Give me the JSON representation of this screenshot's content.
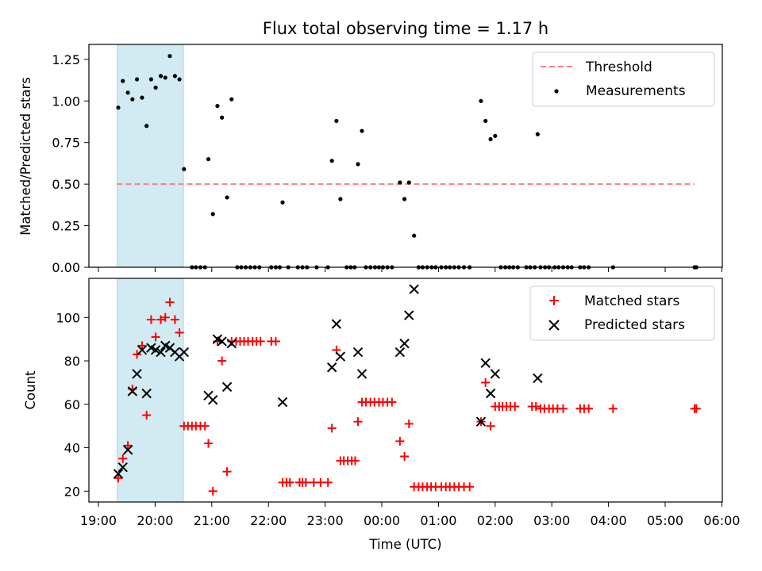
{
  "title": "Flux total observing time = 1.17 h",
  "colors": {
    "threshold": "#ff7f7f",
    "measurement": "#000000",
    "matched": "#ff0000",
    "predicted": "#000000",
    "shade": "#add8e6"
  },
  "x_ticks": [
    "19:00",
    "20:00",
    "21:00",
    "22:00",
    "23:00",
    "00:00",
    "01:00",
    "02:00",
    "03:00",
    "04:00",
    "05:00",
    "06:00"
  ],
  "xlabel": "Time (UTC)",
  "chart_data": [
    {
      "type": "scatter",
      "x_unit": "hours after 19:00 UTC",
      "ylabel": "Matched/Predicted stars",
      "ylim": [
        0,
        1.34
      ],
      "y_ticks": [
        "0.00",
        "0.25",
        "0.50",
        "0.75",
        "1.00",
        "1.25"
      ],
      "shaded_interval": [
        0.33,
        1.5
      ],
      "legend": {
        "position": "top-right",
        "entries": [
          "Threshold",
          "Measurements"
        ]
      },
      "series": [
        {
          "name": "Threshold",
          "style": "dashed-line",
          "x": [
            0.33,
            10.52
          ],
          "y": [
            0.5,
            0.5
          ]
        },
        {
          "name": "Measurements",
          "style": "dot",
          "points": [
            [
              0.35,
              0.96
            ],
            [
              0.43,
              1.12
            ],
            [
              0.52,
              1.05
            ],
            [
              0.6,
              1.01
            ],
            [
              0.68,
              1.13
            ],
            [
              0.77,
              1.02
            ],
            [
              0.85,
              0.85
            ],
            [
              0.93,
              1.13
            ],
            [
              1.01,
              1.08
            ],
            [
              1.1,
              1.15
            ],
            [
              1.18,
              1.14
            ],
            [
              1.26,
              1.27
            ],
            [
              1.35,
              1.15
            ],
            [
              1.43,
              1.13
            ],
            [
              1.51,
              0.59
            ],
            [
              1.65,
              0
            ],
            [
              1.72,
              0
            ],
            [
              1.8,
              0
            ],
            [
              1.88,
              0
            ],
            [
              1.94,
              0.65
            ],
            [
              2.02,
              0.32
            ],
            [
              2.1,
              0.97
            ],
            [
              2.18,
              0.9
            ],
            [
              2.27,
              0.42
            ],
            [
              2.35,
              1.01
            ],
            [
              2.45,
              0
            ],
            [
              2.52,
              0
            ],
            [
              2.6,
              0
            ],
            [
              2.68,
              0
            ],
            [
              2.76,
              0
            ],
            [
              2.84,
              0
            ],
            [
              3.05,
              0
            ],
            [
              3.13,
              0
            ],
            [
              3.2,
              0
            ],
            [
              3.25,
              0.39
            ],
            [
              3.35,
              0
            ],
            [
              3.52,
              0
            ],
            [
              3.6,
              0
            ],
            [
              3.68,
              0
            ],
            [
              3.85,
              0
            ],
            [
              4.05,
              0
            ],
            [
              4.12,
              0.64
            ],
            [
              4.2,
              0.88
            ],
            [
              4.27,
              0.41
            ],
            [
              4.38,
              0
            ],
            [
              4.45,
              0
            ],
            [
              4.52,
              0
            ],
            [
              4.58,
              0.62
            ],
            [
              4.65,
              0.82
            ],
            [
              4.72,
              0
            ],
            [
              4.8,
              0
            ],
            [
              4.88,
              0
            ],
            [
              4.95,
              0
            ],
            [
              5.02,
              0
            ],
            [
              5.1,
              0
            ],
            [
              5.18,
              0
            ],
            [
              5.32,
              0.51
            ],
            [
              5.4,
              0.41
            ],
            [
              5.48,
              0.51
            ],
            [
              5.57,
              0.19
            ],
            [
              5.65,
              0
            ],
            [
              5.72,
              0
            ],
            [
              5.8,
              0
            ],
            [
              5.88,
              0
            ],
            [
              5.95,
              0
            ],
            [
              6.05,
              0
            ],
            [
              6.13,
              0
            ],
            [
              6.2,
              0
            ],
            [
              6.28,
              0
            ],
            [
              6.36,
              0
            ],
            [
              6.45,
              0
            ],
            [
              6.55,
              0
            ],
            [
              6.75,
              1.0
            ],
            [
              6.83,
              0.88
            ],
            [
              6.92,
              0.77
            ],
            [
              7.0,
              0.79
            ],
            [
              7.1,
              0
            ],
            [
              7.18,
              0
            ],
            [
              7.25,
              0
            ],
            [
              7.32,
              0
            ],
            [
              7.4,
              0
            ],
            [
              7.55,
              0
            ],
            [
              7.62,
              0
            ],
            [
              7.7,
              0
            ],
            [
              7.75,
              0.8
            ],
            [
              7.8,
              0
            ],
            [
              7.88,
              0
            ],
            [
              7.95,
              0
            ],
            [
              8.05,
              0
            ],
            [
              8.12,
              0
            ],
            [
              8.2,
              0
            ],
            [
              8.28,
              0
            ],
            [
              8.35,
              0
            ],
            [
              8.5,
              0
            ],
            [
              8.57,
              0
            ],
            [
              8.65,
              0
            ],
            [
              9.08,
              0
            ],
            [
              10.52,
              0
            ],
            [
              10.55,
              0
            ]
          ]
        }
      ]
    },
    {
      "type": "scatter",
      "x_unit": "hours after 19:00 UTC",
      "ylabel": "Count",
      "ylim": [
        15,
        118
      ],
      "y_ticks": [
        "20",
        "40",
        "60",
        "80",
        "100"
      ],
      "shaded_interval": [
        0.33,
        1.5
      ],
      "legend": {
        "position": "top-right",
        "entries": [
          "Matched stars",
          "Predicted stars"
        ]
      },
      "series": [
        {
          "name": "Matched stars",
          "marker": "plus",
          "points": [
            [
              0.35,
              26
            ],
            [
              0.43,
              35
            ],
            [
              0.52,
              41
            ],
            [
              0.6,
              67
            ],
            [
              0.68,
              83
            ],
            [
              0.77,
              87
            ],
            [
              0.85,
              55
            ],
            [
              0.93,
              99
            ],
            [
              1.01,
              91
            ],
            [
              1.1,
              99
            ],
            [
              1.18,
              100
            ],
            [
              1.26,
              107
            ],
            [
              1.35,
              99
            ],
            [
              1.43,
              93
            ],
            [
              1.51,
              50
            ],
            [
              1.58,
              50
            ],
            [
              1.65,
              50
            ],
            [
              1.72,
              50
            ],
            [
              1.8,
              50
            ],
            [
              1.88,
              50
            ],
            [
              1.94,
              42
            ],
            [
              2.02,
              20
            ],
            [
              2.1,
              89
            ],
            [
              2.18,
              80
            ],
            [
              2.27,
              29
            ],
            [
              2.35,
              89
            ],
            [
              2.43,
              89
            ],
            [
              2.5,
              89
            ],
            [
              2.57,
              89
            ],
            [
              2.64,
              89
            ],
            [
              2.72,
              89
            ],
            [
              2.79,
              89
            ],
            [
              2.86,
              89
            ],
            [
              3.05,
              89
            ],
            [
              3.13,
              89
            ],
            [
              3.25,
              24
            ],
            [
              3.32,
              24
            ],
            [
              3.38,
              24
            ],
            [
              3.55,
              24
            ],
            [
              3.6,
              24
            ],
            [
              3.66,
              24
            ],
            [
              3.8,
              24
            ],
            [
              3.92,
              24
            ],
            [
              4.05,
              24
            ],
            [
              4.12,
              49
            ],
            [
              4.2,
              85
            ],
            [
              4.27,
              34
            ],
            [
              4.33,
              34
            ],
            [
              4.4,
              34
            ],
            [
              4.47,
              34
            ],
            [
              4.53,
              34
            ],
            [
              4.58,
              52
            ],
            [
              4.65,
              61
            ],
            [
              4.72,
              61
            ],
            [
              4.8,
              61
            ],
            [
              4.87,
              61
            ],
            [
              4.95,
              61
            ],
            [
              5.02,
              61
            ],
            [
              5.1,
              61
            ],
            [
              5.18,
              61
            ],
            [
              5.32,
              43
            ],
            [
              5.4,
              36
            ],
            [
              5.48,
              51
            ],
            [
              5.57,
              22
            ],
            [
              5.65,
              22
            ],
            [
              5.72,
              22
            ],
            [
              5.8,
              22
            ],
            [
              5.87,
              22
            ],
            [
              5.95,
              22
            ],
            [
              6.05,
              22
            ],
            [
              6.13,
              22
            ],
            [
              6.2,
              22
            ],
            [
              6.28,
              22
            ],
            [
              6.36,
              22
            ],
            [
              6.45,
              22
            ],
            [
              6.55,
              22
            ],
            [
              6.75,
              52
            ],
            [
              6.83,
              70
            ],
            [
              6.92,
              50
            ],
            [
              7.0,
              59
            ],
            [
              7.07,
              59
            ],
            [
              7.13,
              59
            ],
            [
              7.2,
              59
            ],
            [
              7.27,
              59
            ],
            [
              7.35,
              59
            ],
            [
              7.65,
              59
            ],
            [
              7.72,
              59
            ],
            [
              7.8,
              58
            ],
            [
              7.87,
              58
            ],
            [
              7.95,
              58
            ],
            [
              8.02,
              58
            ],
            [
              8.1,
              58
            ],
            [
              8.2,
              58
            ],
            [
              8.5,
              58
            ],
            [
              8.57,
              58
            ],
            [
              8.65,
              58
            ],
            [
              9.08,
              58
            ],
            [
              10.52,
              58
            ],
            [
              10.55,
              58
            ]
          ]
        },
        {
          "name": "Predicted stars",
          "marker": "x",
          "points": [
            [
              0.35,
              28
            ],
            [
              0.43,
              31
            ],
            [
              0.52,
              39
            ],
            [
              0.6,
              66
            ],
            [
              0.68,
              74
            ],
            [
              0.77,
              85
            ],
            [
              0.85,
              65
            ],
            [
              0.93,
              86
            ],
            [
              1.01,
              85
            ],
            [
              1.1,
              84
            ],
            [
              1.18,
              87
            ],
            [
              1.26,
              86
            ],
            [
              1.35,
              84
            ],
            [
              1.43,
              82
            ],
            [
              1.51,
              84
            ],
            [
              1.94,
              64
            ],
            [
              2.02,
              62
            ],
            [
              2.1,
              90
            ],
            [
              2.18,
              89
            ],
            [
              2.27,
              68
            ],
            [
              2.35,
              88
            ],
            [
              3.25,
              61
            ],
            [
              4.12,
              77
            ],
            [
              4.2,
              97
            ],
            [
              4.27,
              82
            ],
            [
              4.58,
              84
            ],
            [
              4.65,
              74
            ],
            [
              5.32,
              84
            ],
            [
              5.4,
              88
            ],
            [
              5.48,
              101
            ],
            [
              5.57,
              113
            ],
            [
              6.75,
              52
            ],
            [
              6.83,
              79
            ],
            [
              6.92,
              65
            ],
            [
              7.0,
              74
            ],
            [
              7.75,
              72
            ]
          ]
        }
      ]
    }
  ]
}
